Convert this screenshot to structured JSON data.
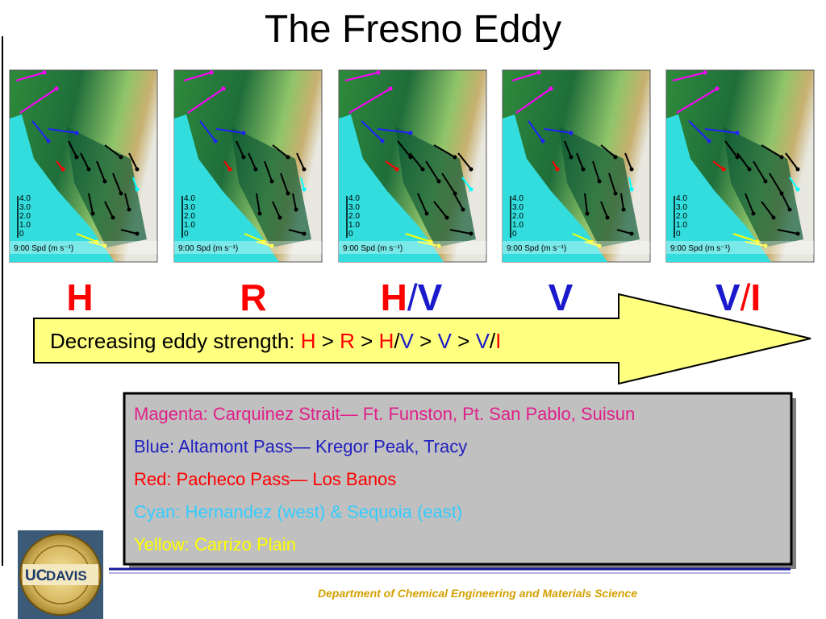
{
  "title": "The Fresno Eddy",
  "maps": [
    {
      "scale_labels": [
        "4.0",
        "3.0",
        "2.0",
        "1.0",
        "0"
      ],
      "caption": "9:00 Spd (m s⁻¹)"
    },
    {
      "scale_labels": [
        "4.0",
        "3.0",
        "2.0",
        "1.0",
        "0"
      ],
      "caption": "9:00 Spd (m s⁻¹)"
    },
    {
      "scale_labels": [
        "4.0",
        "3.0",
        "2.0",
        "1.0",
        "0"
      ],
      "caption": "9:00 Spd (m s⁻¹)"
    },
    {
      "scale_labels": [
        "4.0",
        "3.0",
        "2.0",
        "1.0",
        "0"
      ],
      "caption": "9:00 Spd (m s⁻¹)"
    },
    {
      "scale_labels": [
        "4.0",
        "3.0",
        "2.0",
        "1.0",
        "0"
      ],
      "caption": "9:00 Spd (m s⁻¹)"
    }
  ],
  "map_labels": [
    [
      {
        "text": "H",
        "color": "#ff0000"
      }
    ],
    [
      {
        "text": "R",
        "color": "#ff0000"
      }
    ],
    [
      {
        "text": "H",
        "color": "#ff0000"
      },
      {
        "text": "/",
        "color": "#1a1acc"
      },
      {
        "text": "V",
        "color": "#1a1acc"
      }
    ],
    [
      {
        "text": "V",
        "color": "#1a1acc"
      }
    ],
    [
      {
        "text": "V",
        "color": "#1a1acc"
      },
      {
        "text": "/",
        "color": "#ff0000"
      },
      {
        "text": "I",
        "color": "#ff0000"
      }
    ]
  ],
  "arrow_text": [
    {
      "text": "Decreasing eddy strength: ",
      "color": "#000000"
    },
    {
      "text": "H",
      "color": "#ff0000"
    },
    {
      "text": " > ",
      "color": "#000000"
    },
    {
      "text": "R",
      "color": "#ff0000"
    },
    {
      "text": " > ",
      "color": "#000000"
    },
    {
      "text": "H",
      "color": "#ff0000"
    },
    {
      "text": "/",
      "color": "#000000"
    },
    {
      "text": "V",
      "color": "#1a1acc"
    },
    {
      "text": " > ",
      "color": "#000000"
    },
    {
      "text": "V",
      "color": "#1a1acc"
    },
    {
      "text": " > ",
      "color": "#000000"
    },
    {
      "text": "V",
      "color": "#1a1acc"
    },
    {
      "text": "/",
      "color": "#000000"
    },
    {
      "text": "I",
      "color": "#ff0000"
    }
  ],
  "legend": [
    {
      "text": "Magenta: Carquinez Strait— Ft. Funston, Pt. San Pablo, Suisun",
      "color": "#e0208a"
    },
    {
      "text": "Blue: Altamont Pass— Kregor Peak, Tracy",
      "color": "#2020c0"
    },
    {
      "text": "Red: Pacheco Pass— Los Banos",
      "color": "#ff0000"
    },
    {
      "text": "Cyan: Hernandez (west) & Sequoia (east)",
      "color": "#33ccff"
    },
    {
      "text": "Yellow: Carrizo Plain",
      "color": "#ffff00"
    }
  ],
  "logo": {
    "uc": "UC",
    "davis": "DAVIS"
  },
  "footer": "Department of Chemical Engineering and Materials Science"
}
